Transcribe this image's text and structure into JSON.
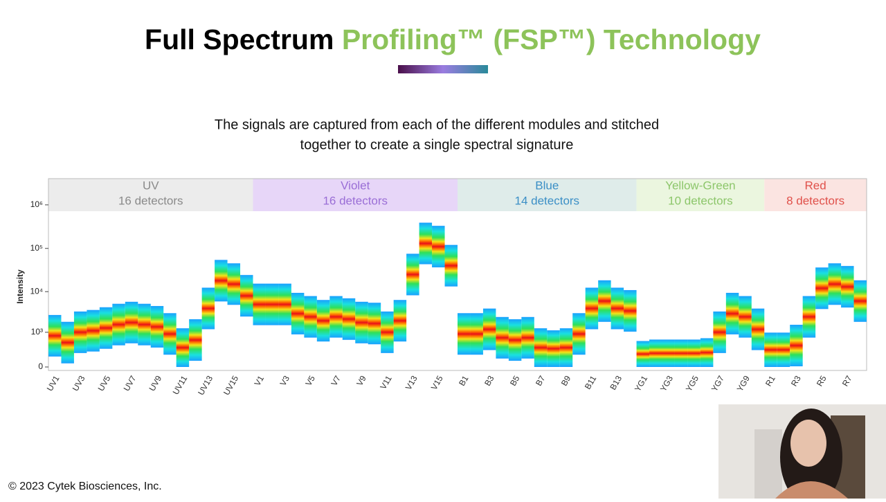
{
  "header": {
    "title_black": "Full Spectrum",
    "title_green": "Profiling™ (FSP™) Technology"
  },
  "subtitle": [
    "The signals are captured from each of the different modules and stitched",
    "together to create a single spectral signature"
  ],
  "footer": "© 2023 Cytek Biosciences, Inc.",
  "chart_data": {
    "type": "spectrum",
    "y_label": "Intensity",
    "yscale": "symlog",
    "ylim": [
      0,
      4000000
    ],
    "yticks": [
      0,
      {
        "value": 1000,
        "label": "10³"
      },
      {
        "value": 10000,
        "label": "10⁴"
      },
      {
        "value": 100000,
        "label": "10⁵"
      },
      {
        "value": 1000000,
        "label": "10⁶"
      }
    ],
    "categories": [
      "UV1",
      null,
      "UV3",
      null,
      "UV5",
      null,
      "UV7",
      null,
      "UV9",
      null,
      "UV11",
      null,
      "UV13",
      null,
      "UV15",
      null,
      "V1",
      null,
      "V3",
      null,
      "V5",
      null,
      "V7",
      null,
      "V9",
      null,
      "V11",
      null,
      "V13",
      null,
      "V15",
      null,
      "B1",
      null,
      "B3",
      null,
      "B5",
      null,
      "B7",
      null,
      "B9",
      null,
      "B11",
      null,
      "B13",
      null,
      "YG1",
      null,
      "YG3",
      null,
      "YG5",
      null,
      "YG7",
      null,
      "YG9",
      null,
      "R1",
      null,
      "R3",
      null,
      "R5",
      null,
      "R7",
      null
    ],
    "values": [
      800,
      500,
      1000,
      1100,
      1300,
      1600,
      1800,
      1600,
      1400,
      900,
      300,
      600,
      4000,
      18000,
      15000,
      8000,
      5000,
      5000,
      5000,
      3000,
      2500,
      2000,
      2500,
      2200,
      1800,
      1700,
      1000,
      2000,
      25000,
      130000,
      110000,
      40000,
      900,
      900,
      1200,
      700,
      600,
      700,
      300,
      250,
      300,
      900,
      4000,
      6000,
      4000,
      3500,
      60,
      80,
      80,
      80,
      80,
      100,
      1000,
      3000,
      2500,
      1200,
      200,
      200,
      400,
      2500,
      12000,
      15000,
      13000,
      6000
    ],
    "groups": [
      {
        "name": "UV",
        "label": "16 detectors",
        "color": "#ececec",
        "text_color": "#8a8a8a"
      },
      {
        "name": "Violet",
        "label": "16 detectors",
        "color": "#e7d6f8",
        "text_color": "#9a6ed6"
      },
      {
        "name": "Blue",
        "label": "14 detectors",
        "color": "#dfecea",
        "text_color": "#3b8fc6"
      },
      {
        "name": "Yellow-Green",
        "label": "10 detectors",
        "color": "#ebf6df",
        "text_color": "#8cc66a"
      },
      {
        "name": "Red",
        "label": "8 detectors",
        "color": "#fbe4e1",
        "text_color": "#e0504a"
      }
    ]
  }
}
